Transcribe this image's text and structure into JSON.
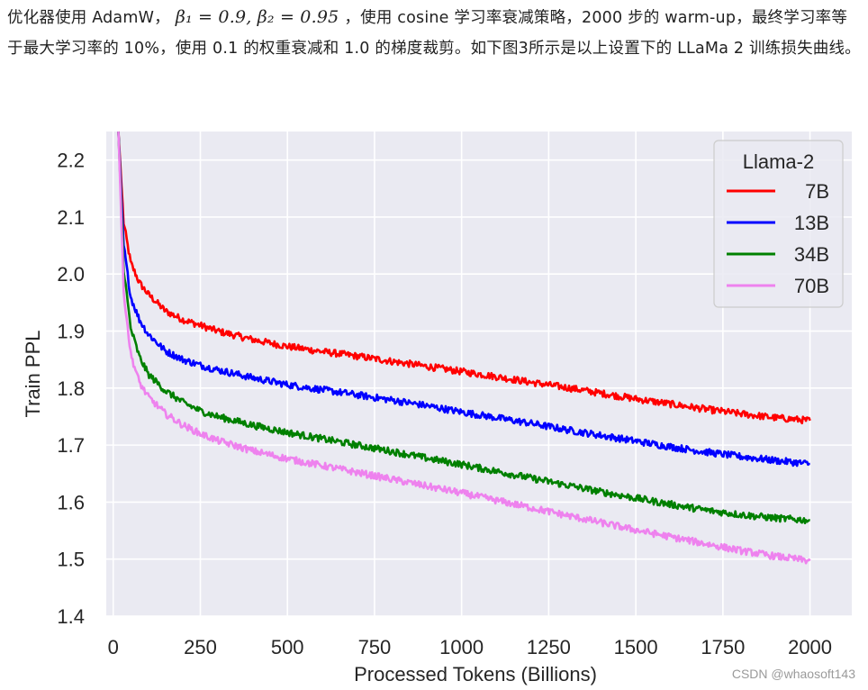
{
  "intro": {
    "part1": "优化器使用 AdamW，",
    "math": "β₁ = 0.9, β₂ = 0.95",
    "part2": "，使用 cosine 学习率衰减策略，2000 步的 warm-up，最终学习率等于最大学习率的 10%，使用 0.1 的权重衰减和 1.0 的梯度裁剪。如下图3所示是以上设置下的 LLaMa 2 训练损失曲线。"
  },
  "watermark": "CSDN @whaosoft143",
  "colors": {
    "background": "#eaeaf2",
    "grid": "#ffffff"
  },
  "chart_data": {
    "type": "line",
    "xlabel": "Processed Tokens (Billions)",
    "ylabel": "Train PPL",
    "xlim": [
      -20,
      2120
    ],
    "ylim": [
      1.4,
      2.25
    ],
    "xticks": [
      "0",
      "250",
      "500",
      "750",
      "1000",
      "1250",
      "1500",
      "1750",
      "2000"
    ],
    "yticks": [
      "1.4",
      "1.5",
      "1.6",
      "1.7",
      "1.8",
      "1.9",
      "2.0",
      "2.1",
      "2.2"
    ],
    "grid": true,
    "legend": {
      "title": "Llama-2",
      "position": "top-right"
    },
    "series": [
      {
        "name": "7B",
        "color": "#ff0000",
        "x": [
          15,
          30,
          50,
          75,
          100,
          150,
          200,
          250,
          300,
          400,
          500,
          600,
          700,
          800,
          900,
          1000,
          1100,
          1200,
          1300,
          1400,
          1500,
          1600,
          1700,
          1800,
          1900,
          2000
        ],
        "y": [
          2.25,
          2.09,
          2.02,
          1.985,
          1.965,
          1.935,
          1.92,
          1.91,
          1.9,
          1.885,
          1.873,
          1.864,
          1.856,
          1.847,
          1.838,
          1.829,
          1.82,
          1.81,
          1.801,
          1.791,
          1.781,
          1.772,
          1.763,
          1.755,
          1.748,
          1.743
        ]
      },
      {
        "name": "13B",
        "color": "#0000ff",
        "x": [
          15,
          30,
          50,
          75,
          100,
          150,
          200,
          250,
          300,
          400,
          500,
          600,
          700,
          800,
          900,
          1000,
          1100,
          1200,
          1300,
          1400,
          1500,
          1600,
          1700,
          1800,
          1900,
          2000
        ],
        "y": [
          2.25,
          2.05,
          1.96,
          1.92,
          1.895,
          1.865,
          1.85,
          1.84,
          1.832,
          1.818,
          1.806,
          1.797,
          1.788,
          1.779,
          1.769,
          1.758,
          1.748,
          1.738,
          1.727,
          1.717,
          1.707,
          1.697,
          1.688,
          1.68,
          1.673,
          1.667
        ]
      },
      {
        "name": "34B",
        "color": "#008000",
        "x": [
          15,
          30,
          50,
          75,
          100,
          150,
          200,
          250,
          300,
          400,
          500,
          600,
          700,
          800,
          900,
          1000,
          1100,
          1200,
          1300,
          1400,
          1500,
          1600,
          1700,
          1800,
          1900,
          2000
        ],
        "y": [
          2.25,
          2.01,
          1.905,
          1.855,
          1.825,
          1.795,
          1.775,
          1.76,
          1.75,
          1.735,
          1.722,
          1.711,
          1.7,
          1.689,
          1.677,
          1.666,
          1.654,
          1.642,
          1.63,
          1.618,
          1.607,
          1.596,
          1.586,
          1.578,
          1.572,
          1.568
        ]
      },
      {
        "name": "70B",
        "color": "#ee82ee",
        "x": [
          15,
          30,
          50,
          75,
          100,
          150,
          200,
          250,
          300,
          400,
          500,
          600,
          700,
          800,
          900,
          1000,
          1100,
          1200,
          1300,
          1400,
          1500,
          1600,
          1700,
          1800,
          1900,
          2000
        ],
        "y": [
          2.25,
          1.97,
          1.86,
          1.81,
          1.785,
          1.755,
          1.735,
          1.72,
          1.708,
          1.69,
          1.676,
          1.664,
          1.652,
          1.64,
          1.628,
          1.616,
          1.603,
          1.59,
          1.577,
          1.564,
          1.551,
          1.539,
          1.527,
          1.515,
          1.505,
          1.497
        ]
      }
    ]
  }
}
